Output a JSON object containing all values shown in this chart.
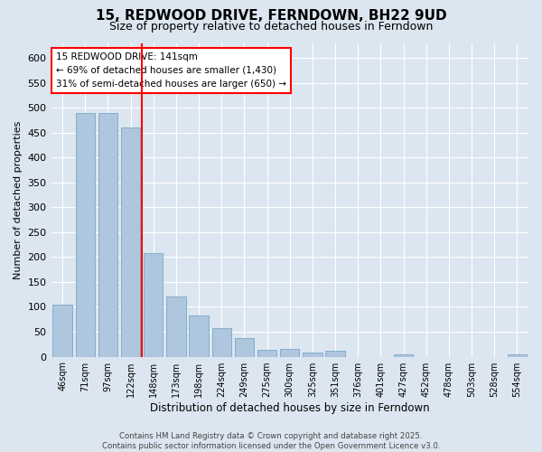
{
  "title": "15, REDWOOD DRIVE, FERNDOWN, BH22 9UD",
  "subtitle": "Size of property relative to detached houses in Ferndown",
  "xlabel": "Distribution of detached houses by size in Ferndown",
  "ylabel": "Number of detached properties",
  "footer_line1": "Contains HM Land Registry data © Crown copyright and database right 2025.",
  "footer_line2": "Contains public sector information licensed under the Open Government Licence v3.0.",
  "categories": [
    "46sqm",
    "71sqm",
    "97sqm",
    "122sqm",
    "148sqm",
    "173sqm",
    "198sqm",
    "224sqm",
    "249sqm",
    "275sqm",
    "300sqm",
    "325sqm",
    "351sqm",
    "376sqm",
    "401sqm",
    "427sqm",
    "452sqm",
    "478sqm",
    "503sqm",
    "528sqm",
    "554sqm"
  ],
  "values": [
    105,
    490,
    490,
    460,
    208,
    120,
    83,
    57,
    38,
    14,
    15,
    8,
    12,
    0,
    0,
    5,
    0,
    0,
    0,
    0,
    4
  ],
  "bar_color": "#aec6de",
  "bar_edge_color": "#6a9dbf",
  "background_color": "#dce6f0",
  "grid_color": "#ffffff",
  "annotation_box_text_line1": "15 REDWOOD DRIVE: 141sqm",
  "annotation_box_text_line2": "← 69% of detached houses are smaller (1,430)",
  "annotation_box_text_line3": "31% of semi-detached houses are larger (650) →",
  "redline_bar_index": 4,
  "ylim": [
    0,
    630
  ],
  "yticks": [
    0,
    50,
    100,
    150,
    200,
    250,
    300,
    350,
    400,
    450,
    500,
    550,
    600
  ]
}
